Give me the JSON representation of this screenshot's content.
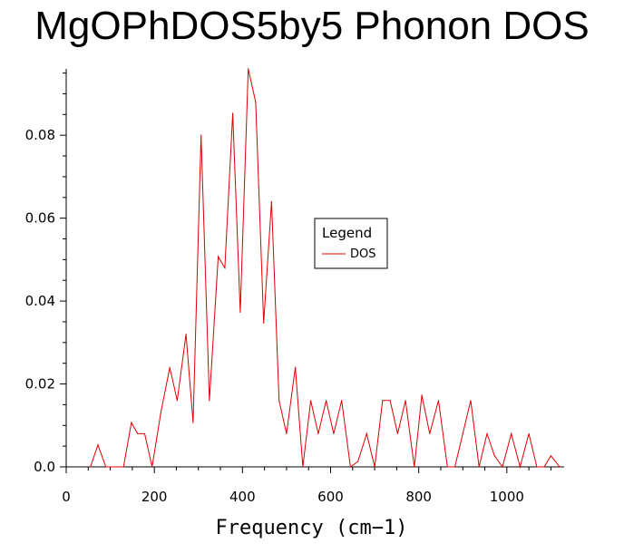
{
  "chart_data": {
    "type": "line",
    "title": "MgOPhDOS5by5 Phonon DOS",
    "xlabel": "Frequency (cm−1)",
    "ylabel": "",
    "xlim": [
      0,
      1130
    ],
    "ylim": [
      0,
      0.096
    ],
    "x_ticks": [
      0,
      200,
      400,
      600,
      800,
      1000
    ],
    "x_tick_labels": [
      "0",
      "200",
      "400",
      "600",
      "800",
      "1000"
    ],
    "y_ticks": [
      0.0,
      0.02,
      0.04,
      0.06,
      0.08
    ],
    "y_tick_labels": [
      "0.0",
      "0.02",
      "0.04",
      "0.06",
      "0.08"
    ],
    "grid": false,
    "legend": {
      "title": "Legend",
      "position": "center-right"
    },
    "series": [
      {
        "name": "DOS",
        "color": "#dd0000",
        "x": [
          55,
          72,
          90,
          115,
          130,
          148,
          162,
          178,
          195,
          215,
          235,
          252,
          272,
          288,
          306,
          325,
          345,
          360,
          378,
          395,
          413,
          430,
          448,
          466,
          483,
          500,
          520,
          537,
          555,
          572,
          590,
          607,
          625,
          645,
          662,
          682,
          700,
          718,
          735,
          752,
          770,
          790,
          807,
          825,
          845,
          865,
          882,
          900,
          918,
          937,
          955,
          972,
          990,
          1010,
          1030,
          1050,
          1068,
          1085,
          1100,
          1120
        ],
        "values": [
          0.0,
          0.0053,
          0.0,
          0.0,
          0.0,
          0.0107,
          0.008,
          0.008,
          0.0,
          0.0133,
          0.024,
          0.016,
          0.032,
          0.0107,
          0.08,
          0.016,
          0.0507,
          0.048,
          0.0853,
          0.0373,
          0.096,
          0.088,
          0.0347,
          0.064,
          0.016,
          0.008,
          0.024,
          0.0,
          0.016,
          0.008,
          0.016,
          0.008,
          0.016,
          0.0,
          0.0013,
          0.008,
          0.0,
          0.016,
          0.016,
          0.008,
          0.016,
          0.0,
          0.0173,
          0.008,
          0.016,
          0.0,
          0.0,
          0.008,
          0.016,
          0.0,
          0.008,
          0.0027,
          0.0,
          0.008,
          0.0,
          0.008,
          0.0,
          0.0,
          0.0027,
          0.0
        ]
      }
    ]
  }
}
